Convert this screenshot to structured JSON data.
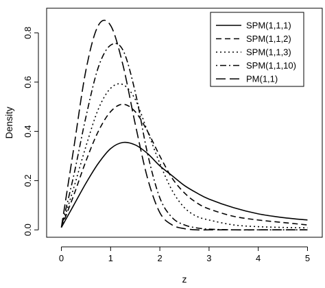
{
  "chart_data": {
    "type": "line",
    "xlabel": "z",
    "ylabel": "Density",
    "xlim": [
      -0.3,
      5.3
    ],
    "ylim": [
      -0.03,
      0.9
    ],
    "x_ticks": [
      0,
      1,
      2,
      3,
      4,
      5
    ],
    "x_tick_labels": [
      "0",
      "1",
      "2",
      "3",
      "4",
      "5"
    ],
    "y_ticks": [
      0.0,
      0.2,
      0.4,
      0.6,
      0.8
    ],
    "y_tick_labels": [
      "0.0",
      "0.2",
      "0.4",
      "0.6",
      "0.8"
    ],
    "grid": false,
    "legend_position": "top-right",
    "x": [
      0,
      0.25,
      0.5,
      0.75,
      1.0,
      1.25,
      1.5,
      1.75,
      2.0,
      2.25,
      2.5,
      2.75,
      3.0,
      3.5,
      4.0,
      4.5,
      5.0
    ],
    "series": [
      {
        "name": "SPM(1,1,1)",
        "dash": "solid",
        "values": [
          0.01,
          0.1,
          0.19,
          0.27,
          0.33,
          0.355,
          0.345,
          0.31,
          0.26,
          0.22,
          0.18,
          0.15,
          0.125,
          0.09,
          0.065,
          0.05,
          0.04
        ]
      },
      {
        "name": "SPM(1,1,2)",
        "dash": "dashed",
        "values": [
          0.01,
          0.14,
          0.28,
          0.4,
          0.48,
          0.51,
          0.48,
          0.4,
          0.3,
          0.21,
          0.15,
          0.11,
          0.085,
          0.055,
          0.04,
          0.03,
          0.02
        ]
      },
      {
        "name": "SPM(1,1,3)",
        "dash": "dotted",
        "values": [
          0.01,
          0.17,
          0.34,
          0.49,
          0.575,
          0.59,
          0.53,
          0.4,
          0.27,
          0.16,
          0.09,
          0.055,
          0.04,
          0.02,
          0.013,
          0.01,
          0.008
        ]
      },
      {
        "name": "SPM(1,1,10)",
        "dash": "dotdash",
        "values": [
          0.01,
          0.22,
          0.46,
          0.66,
          0.75,
          0.73,
          0.56,
          0.31,
          0.13,
          0.05,
          0.02,
          0.008,
          0.003,
          0.0,
          0.0,
          0.0,
          0.0
        ]
      },
      {
        "name": "PM(1,1)",
        "dash": "longdash",
        "values": [
          0.01,
          0.33,
          0.65,
          0.83,
          0.83,
          0.67,
          0.43,
          0.21,
          0.07,
          0.02,
          0.005,
          0.0,
          0.0,
          0.0,
          0.0,
          0.0,
          0.0
        ]
      }
    ]
  }
}
